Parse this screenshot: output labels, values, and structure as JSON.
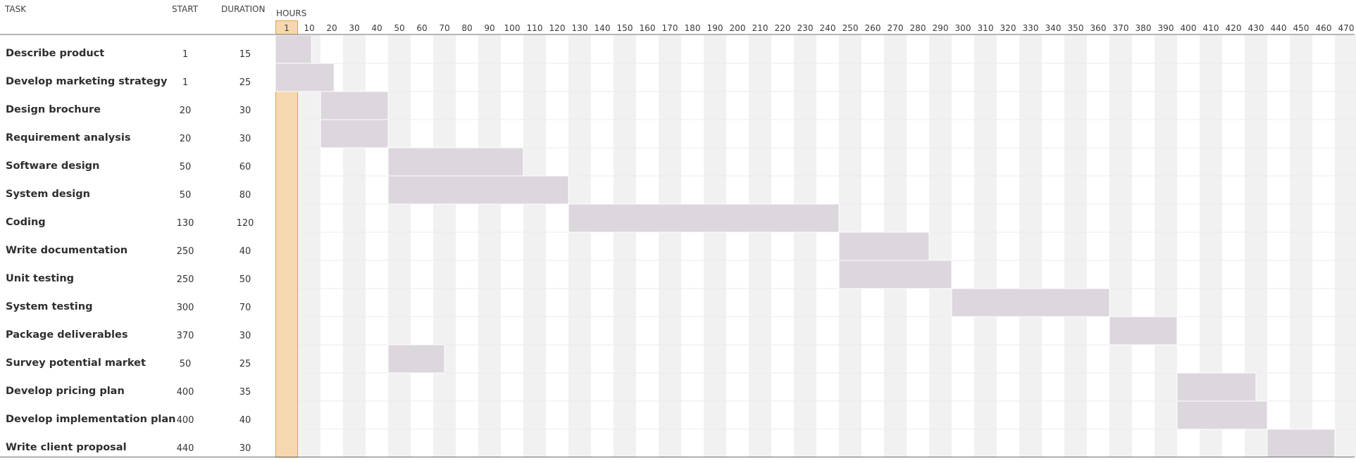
{
  "table": {
    "task_header": "TASK",
    "start_header": "START",
    "duration_header": "DURATION",
    "hours_label": "HOURS"
  },
  "colors": {
    "bar": "#dcd6dd",
    "highlight": "#f6d8b0",
    "highlight_border": "#e0a24f",
    "stripe": "#f1f1f1",
    "rule": "#6b6b6b"
  },
  "chart_data": {
    "type": "bar",
    "subtype": "gantt",
    "highlighted_tick": "1",
    "ticks": [
      "1",
      "10",
      "20",
      "30",
      "40",
      "50",
      "60",
      "70",
      "80",
      "90",
      "100",
      "110",
      "120",
      "130",
      "140",
      "150",
      "160",
      "170",
      "180",
      "190",
      "200",
      "210",
      "220",
      "230",
      "240",
      "250",
      "260",
      "270",
      "280",
      "290",
      "300",
      "310",
      "320",
      "330",
      "340",
      "350",
      "360",
      "370",
      "380",
      "390",
      "400",
      "410",
      "420",
      "430",
      "440",
      "450",
      "460",
      "470"
    ],
    "tasks": [
      {
        "name": "Describe product",
        "start": 1,
        "duration": 15
      },
      {
        "name": "Develop marketing strategy",
        "start": 1,
        "duration": 25
      },
      {
        "name": "Design brochure",
        "start": 20,
        "duration": 30
      },
      {
        "name": "Requirement analysis",
        "start": 20,
        "duration": 30
      },
      {
        "name": "Software design",
        "start": 50,
        "duration": 60
      },
      {
        "name": "System design",
        "start": 50,
        "duration": 80
      },
      {
        "name": "Coding",
        "start": 130,
        "duration": 120
      },
      {
        "name": "Write documentation",
        "start": 250,
        "duration": 40
      },
      {
        "name": "Unit testing",
        "start": 250,
        "duration": 50
      },
      {
        "name": "System testing",
        "start": 300,
        "duration": 70
      },
      {
        "name": "Package deliverables",
        "start": 370,
        "duration": 30
      },
      {
        "name": "Survey potential market",
        "start": 50,
        "duration": 25
      },
      {
        "name": "Develop pricing plan",
        "start": 400,
        "duration": 35
      },
      {
        "name": "Develop implementation plan",
        "start": 400,
        "duration": 40
      },
      {
        "name": "Write client proposal",
        "start": 440,
        "duration": 30
      }
    ]
  }
}
